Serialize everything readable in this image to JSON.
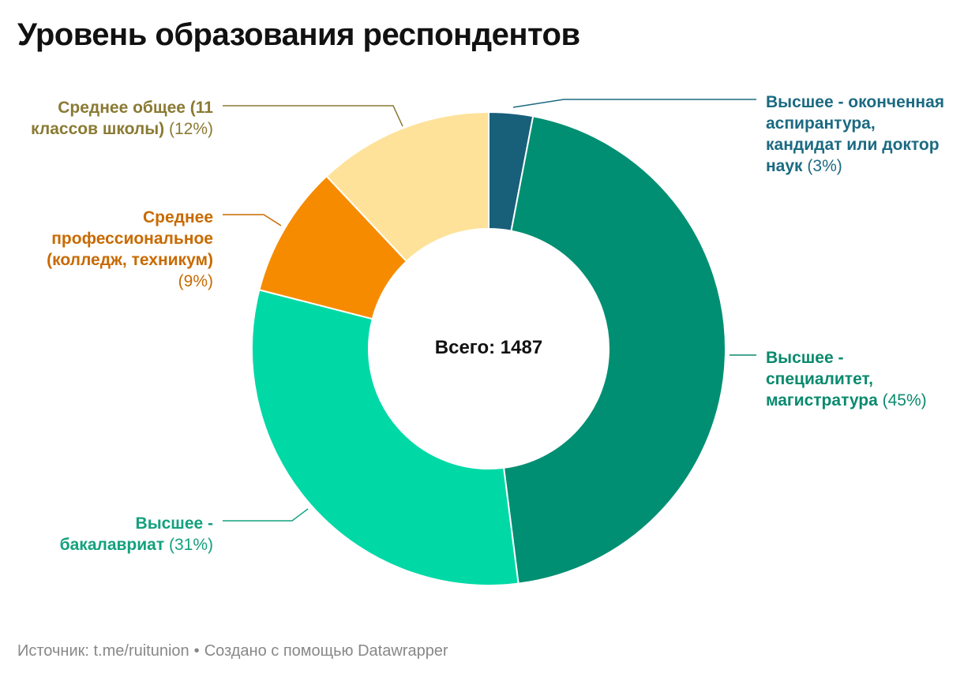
{
  "title": "Уровень образования респондентов",
  "footer": {
    "source_label": "Источник: t.me/ruitunion",
    "separator": "•",
    "credit": "Создано с помощью Datawrapper"
  },
  "chart_data": {
    "type": "pie",
    "variant": "donut",
    "center_label": "Всего: 1487",
    "total": 1487,
    "slices": [
      {
        "label": [
          "Высшее - оконченная",
          "аспирантура,",
          "кандидат или доктор",
          "наук"
        ],
        "percent_label": "(3%)",
        "value": 3,
        "color": "#185f7a",
        "text_color": "#1b6a82"
      },
      {
        "label": [
          "Высшее -",
          "специалитет,",
          "магистратура"
        ],
        "percent_label": "(45%)",
        "value": 45,
        "color": "#008f72",
        "text_color": "#0a8a6e"
      },
      {
        "label": [
          "Высшее -",
          "бакалавриат"
        ],
        "percent_label": "(31%)",
        "value": 31,
        "color": "#00d9a6",
        "text_color": "#13a17e"
      },
      {
        "label": [
          "Среднее",
          "профессиональное",
          "(колледж, техникум)"
        ],
        "percent_label": "(9%)",
        "value": 9,
        "color": "#f78b00",
        "text_color": "#c86a00"
      },
      {
        "label": [
          "Среднее общее (11",
          "классов школы)"
        ],
        "percent_label": "(12%)",
        "value": 12,
        "color": "#fee29a",
        "text_color": "#8a7a33"
      }
    ]
  }
}
